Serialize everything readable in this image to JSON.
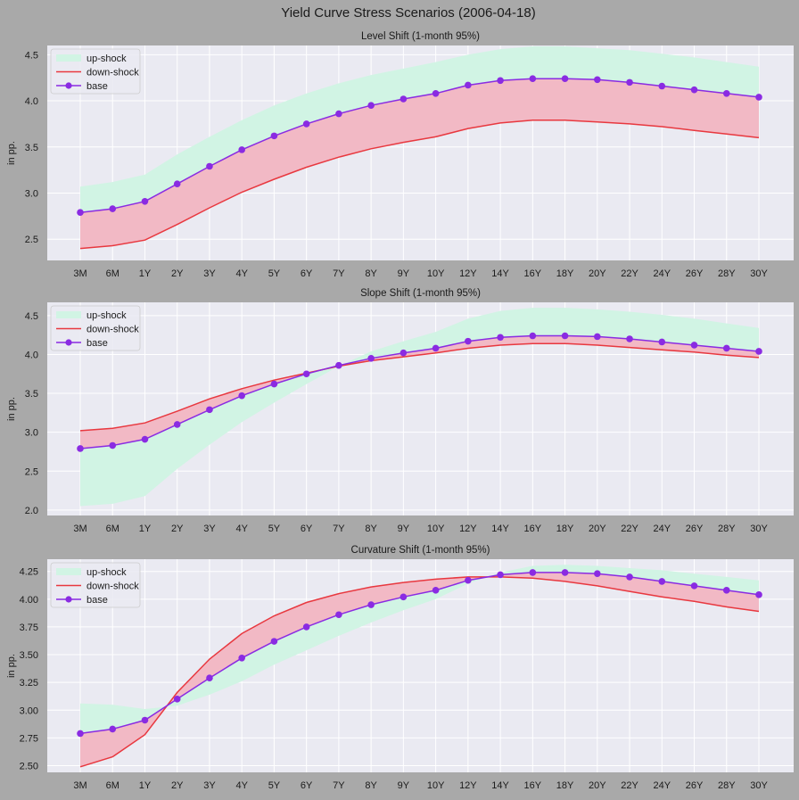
{
  "figure": {
    "title": "Yield Curve Stress Scenarios (2006-04-18)"
  },
  "colors": {
    "figure_bg": "#a9a9a9",
    "panel_bg": "#eaeaf2",
    "grid": "#ffffff",
    "upshock_fill": "#d1f4e4",
    "downshock_line": "#e8383f",
    "downshock_fill": "#f2b9c5",
    "base": "#8a2be2",
    "text": "#1a1a1a"
  },
  "chart_data": [
    {
      "type": "line",
      "title": "Level Shift (1-month 95%)",
      "ylabel": "in pp.",
      "categories": [
        "3M",
        "6M",
        "1Y",
        "2Y",
        "3Y",
        "4Y",
        "5Y",
        "6Y",
        "7Y",
        "8Y",
        "9Y",
        "10Y",
        "12Y",
        "14Y",
        "16Y",
        "18Y",
        "20Y",
        "22Y",
        "24Y",
        "26Y",
        "28Y",
        "30Y"
      ],
      "ylim": [
        2.27,
        4.6
      ],
      "yticks": [
        2.5,
        3.0,
        3.5,
        4.0,
        4.5
      ],
      "ytick_labels": [
        "2.5",
        "3.0",
        "3.5",
        "4.0",
        "4.5"
      ],
      "legend": {
        "position": "top-left",
        "entries": [
          "up-shock",
          "down-shock",
          "base"
        ]
      },
      "grid": true,
      "series": [
        {
          "name": "base",
          "values": [
            2.79,
            2.83,
            2.91,
            3.1,
            3.29,
            3.47,
            3.62,
            3.75,
            3.86,
            3.95,
            4.02,
            4.08,
            4.17,
            4.22,
            4.24,
            4.24,
            4.23,
            4.2,
            4.16,
            4.12,
            4.08,
            4.04
          ]
        },
        {
          "name": "down-shock",
          "values": [
            2.4,
            2.43,
            2.49,
            2.66,
            2.84,
            3.01,
            3.15,
            3.28,
            3.39,
            3.48,
            3.55,
            3.61,
            3.7,
            3.76,
            3.79,
            3.79,
            3.77,
            3.75,
            3.72,
            3.68,
            3.64,
            3.6
          ]
        },
        {
          "name": "up-shock",
          "values": [
            3.07,
            3.12,
            3.2,
            3.42,
            3.61,
            3.79,
            3.95,
            4.08,
            4.19,
            4.28,
            4.35,
            4.42,
            4.5,
            4.56,
            4.59,
            4.59,
            4.57,
            4.55,
            4.51,
            4.47,
            4.42,
            4.37
          ]
        }
      ]
    },
    {
      "type": "line",
      "title": "Slope Shift (1-month 95%)",
      "ylabel": "in pp.",
      "categories": [
        "3M",
        "6M",
        "1Y",
        "2Y",
        "3Y",
        "4Y",
        "5Y",
        "6Y",
        "7Y",
        "8Y",
        "9Y",
        "10Y",
        "12Y",
        "14Y",
        "16Y",
        "18Y",
        "20Y",
        "22Y",
        "24Y",
        "26Y",
        "28Y",
        "30Y"
      ],
      "ylim": [
        1.93,
        4.67
      ],
      "yticks": [
        2.0,
        2.5,
        3.0,
        3.5,
        4.0,
        4.5
      ],
      "ytick_labels": [
        "2.0",
        "2.5",
        "3.0",
        "3.5",
        "4.0",
        "4.5"
      ],
      "legend": {
        "position": "top-left",
        "entries": [
          "up-shock",
          "down-shock",
          "base"
        ]
      },
      "grid": true,
      "series": [
        {
          "name": "base",
          "values": [
            2.79,
            2.83,
            2.91,
            3.1,
            3.29,
            3.47,
            3.62,
            3.75,
            3.86,
            3.95,
            4.02,
            4.08,
            4.17,
            4.22,
            4.24,
            4.24,
            4.23,
            4.2,
            4.16,
            4.12,
            4.08,
            4.04
          ]
        },
        {
          "name": "down-shock",
          "values": [
            3.02,
            3.05,
            3.12,
            3.27,
            3.43,
            3.56,
            3.67,
            3.76,
            3.85,
            3.92,
            3.97,
            4.02,
            4.08,
            4.12,
            4.14,
            4.14,
            4.12,
            4.09,
            4.06,
            4.03,
            3.99,
            3.96
          ]
        },
        {
          "name": "up-shock",
          "values": [
            2.05,
            2.08,
            2.18,
            2.53,
            2.84,
            3.13,
            3.38,
            3.62,
            3.85,
            4.04,
            4.17,
            4.29,
            4.46,
            4.56,
            4.6,
            4.6,
            4.58,
            4.55,
            4.51,
            4.46,
            4.4,
            4.34
          ]
        }
      ]
    },
    {
      "type": "line",
      "title": "Curvature Shift (1-month 95%)",
      "ylabel": "in pp.",
      "categories": [
        "3M",
        "6M",
        "1Y",
        "2Y",
        "3Y",
        "4Y",
        "5Y",
        "6Y",
        "7Y",
        "8Y",
        "9Y",
        "10Y",
        "12Y",
        "14Y",
        "16Y",
        "18Y",
        "20Y",
        "22Y",
        "24Y",
        "26Y",
        "28Y",
        "30Y"
      ],
      "ylim": [
        2.44,
        4.36
      ],
      "yticks": [
        2.5,
        2.75,
        3.0,
        3.25,
        3.5,
        3.75,
        4.0,
        4.25
      ],
      "ytick_labels": [
        "2.50",
        "2.75",
        "3.00",
        "3.25",
        "3.50",
        "3.75",
        "4.00",
        "4.25"
      ],
      "legend": {
        "position": "top-left",
        "entries": [
          "up-shock",
          "down-shock",
          "base"
        ]
      },
      "grid": true,
      "series": [
        {
          "name": "base",
          "values": [
            2.79,
            2.83,
            2.91,
            3.1,
            3.29,
            3.47,
            3.62,
            3.75,
            3.86,
            3.95,
            4.02,
            4.08,
            4.17,
            4.22,
            4.24,
            4.24,
            4.23,
            4.2,
            4.16,
            4.12,
            4.08,
            4.04
          ]
        },
        {
          "name": "down-shock",
          "values": [
            2.49,
            2.58,
            2.78,
            3.16,
            3.46,
            3.69,
            3.85,
            3.97,
            4.05,
            4.11,
            4.15,
            4.18,
            4.2,
            4.2,
            4.19,
            4.16,
            4.12,
            4.07,
            4.02,
            3.98,
            3.93,
            3.89
          ]
        },
        {
          "name": "up-shock",
          "values": [
            3.06,
            3.05,
            3.01,
            3.04,
            3.14,
            3.26,
            3.41,
            3.54,
            3.67,
            3.79,
            3.9,
            4.0,
            4.14,
            4.24,
            4.3,
            4.31,
            4.3,
            4.28,
            4.26,
            4.23,
            4.2,
            4.17
          ]
        }
      ]
    }
  ]
}
